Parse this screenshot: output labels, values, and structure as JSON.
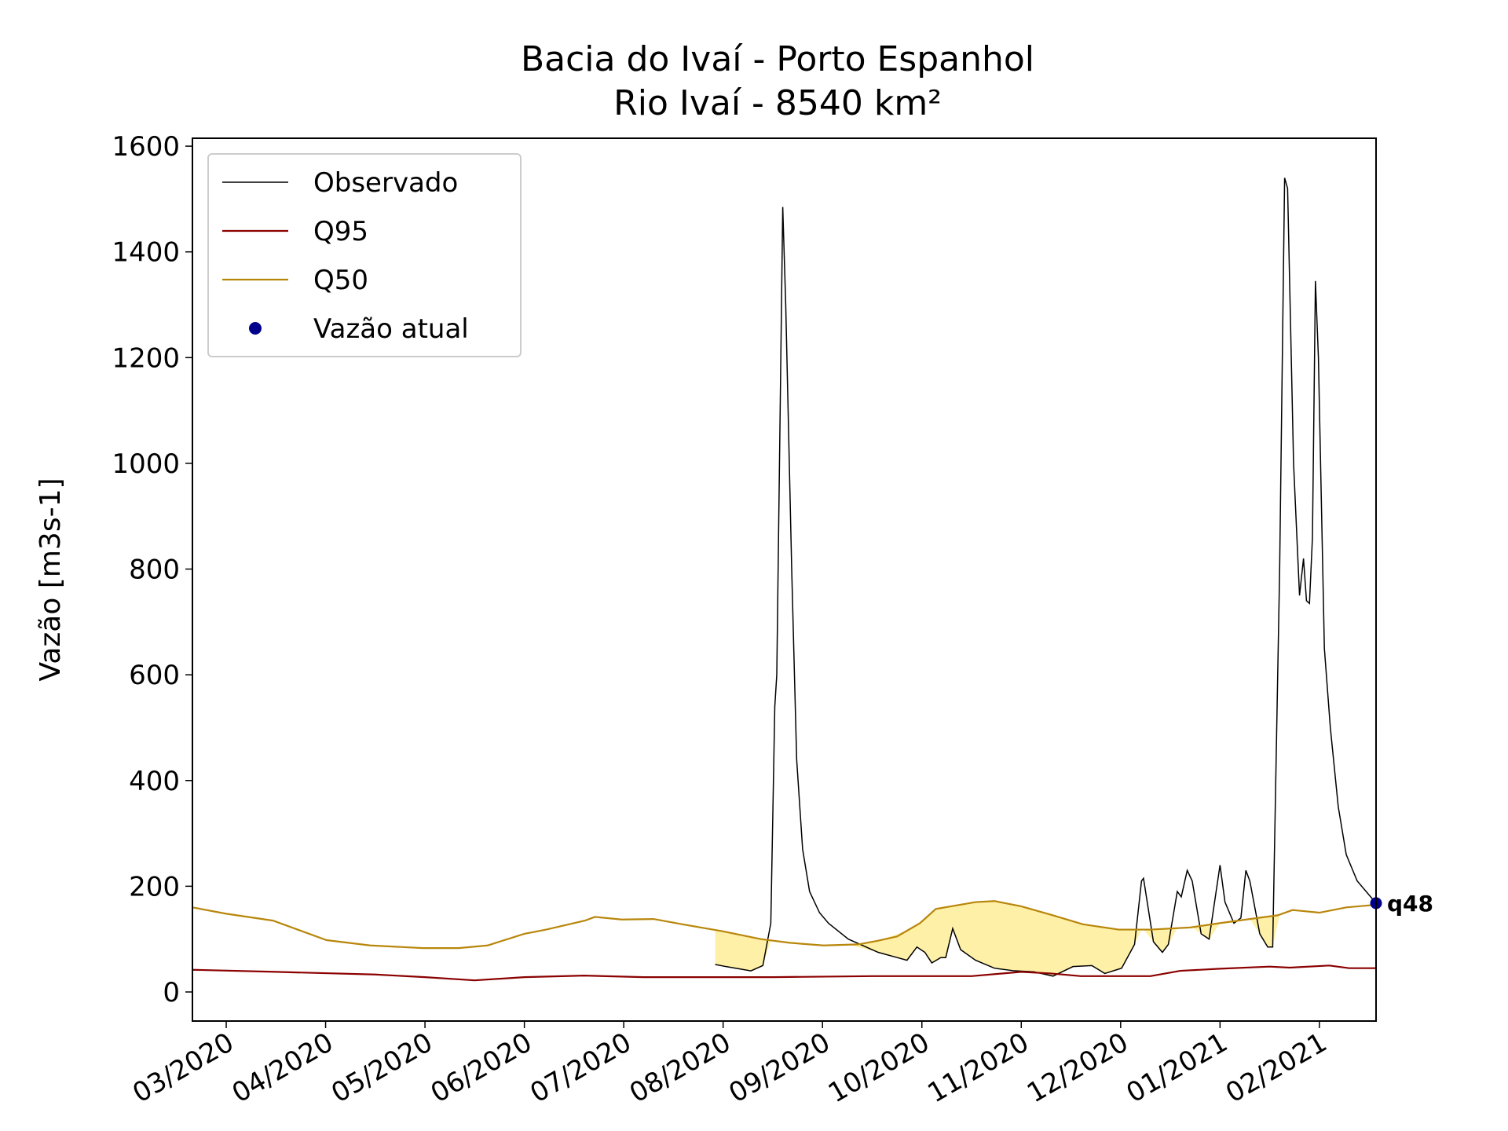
{
  "chart_data": {
    "type": "line",
    "title": "Bacia do Ivaí - Porto Espanhol",
    "subtitle": "Rio Ivaí - 8540 km²",
    "y_label": "Vazão [m3s-1]",
    "xlim": [
      2.66,
      14.57
    ],
    "xticks": [
      {
        "value": 3,
        "label": "03/2020"
      },
      {
        "value": 4,
        "label": "04/2020"
      },
      {
        "value": 5,
        "label": "05/2020"
      },
      {
        "value": 6,
        "label": "06/2020"
      },
      {
        "value": 7,
        "label": "07/2020"
      },
      {
        "value": 8,
        "label": "08/2020"
      },
      {
        "value": 9,
        "label": "09/2020"
      },
      {
        "value": 10,
        "label": "10/2020"
      },
      {
        "value": 11,
        "label": "11/2020"
      },
      {
        "value": 12,
        "label": "12/2020"
      },
      {
        "value": 13,
        "label": "01/2021"
      },
      {
        "value": 14,
        "label": "02/2021"
      }
    ],
    "ylim": [
      -55,
      1615
    ],
    "yticks": [
      0,
      200,
      400,
      600,
      800,
      1000,
      1200,
      1400,
      1600
    ],
    "legend": "upper left",
    "fill_color": "#fff0a8",
    "series": [
      {
        "name": "Observado",
        "color": "#000000",
        "x": [
          7.92,
          8.03,
          8.28,
          8.4,
          8.48,
          8.52,
          8.54,
          8.6,
          8.63,
          8.69,
          8.74,
          8.8,
          8.87,
          8.97,
          9.06,
          9.26,
          9.56,
          9.85,
          9.95,
          10.03,
          10.1,
          10.19,
          10.24,
          10.31,
          10.39,
          10.54,
          10.73,
          10.93,
          11.13,
          11.32,
          11.52,
          11.71,
          11.84,
          12.01,
          12.14,
          12.21,
          12.23,
          12.33,
          12.42,
          12.48,
          12.57,
          12.61,
          12.67,
          12.72,
          12.81,
          12.89,
          13.0,
          13.05,
          13.14,
          13.21,
          13.26,
          13.3,
          13.4,
          13.48,
          13.53,
          13.6,
          13.65,
          13.68,
          13.74,
          13.8,
          13.84,
          13.87,
          13.9,
          13.93,
          13.96,
          13.99,
          14.05,
          14.11,
          14.19,
          14.27,
          14.38,
          14.57
        ],
        "values": [
          52,
          48,
          40,
          50,
          130,
          540,
          600,
          1485,
          1300,
          800,
          440,
          270,
          190,
          150,
          130,
          100,
          75,
          60,
          85,
          75,
          55,
          65,
          65,
          120,
          80,
          60,
          45,
          40,
          38,
          30,
          48,
          50,
          35,
          45,
          90,
          210,
          215,
          95,
          75,
          90,
          190,
          180,
          230,
          210,
          110,
          100,
          240,
          170,
          130,
          140,
          230,
          210,
          110,
          85,
          85,
          800,
          1540,
          1520,
          1000,
          750,
          820,
          740,
          735,
          860,
          1345,
          1200,
          650,
          500,
          350,
          260,
          210,
          168
        ]
      },
      {
        "name": "Q95",
        "color": "#8b0000",
        "x": [
          2.66,
          3.5,
          4.5,
          5.0,
          5.5,
          6.0,
          6.6,
          7.2,
          8.5,
          9.5,
          10.5,
          11.0,
          11.3,
          11.6,
          12.3,
          12.6,
          13.0,
          13.5,
          13.7,
          14.1,
          14.3,
          14.57
        ],
        "values": [
          42,
          38,
          33,
          28,
          22,
          28,
          31,
          28,
          28,
          30,
          30,
          38,
          35,
          30,
          30,
          40,
          44,
          48,
          46,
          50,
          45,
          45
        ]
      },
      {
        "name": "Q50",
        "color": "#b8860b",
        "x": [
          2.66,
          3,
          3.47,
          4.01,
          4.45,
          4.98,
          5.34,
          5.63,
          6.0,
          6.22,
          6.61,
          6.71,
          6.98,
          7.3,
          7.59,
          7.99,
          8.38,
          8.67,
          9.01,
          9.36,
          9.56,
          9.75,
          9.98,
          10.14,
          10.54,
          10.73,
          11.0,
          11.32,
          11.62,
          11.98,
          12.3,
          12.7,
          12.99,
          13.38,
          13.58,
          13.73,
          14.0,
          14.27,
          14.57
        ],
        "values": [
          160,
          148,
          135,
          98,
          88,
          83,
          83,
          88,
          110,
          118,
          135,
          142,
          137,
          138,
          128,
          115,
          100,
          93,
          88,
          90,
          97,
          105,
          130,
          157,
          170,
          172,
          162,
          145,
          128,
          118,
          118,
          122,
          130,
          140,
          145,
          155,
          150,
          160,
          165
        ]
      }
    ],
    "marker": {
      "name": "Vazão atual",
      "color": "#00008b",
      "x": 14.57,
      "y": 168,
      "label": "q48"
    }
  }
}
